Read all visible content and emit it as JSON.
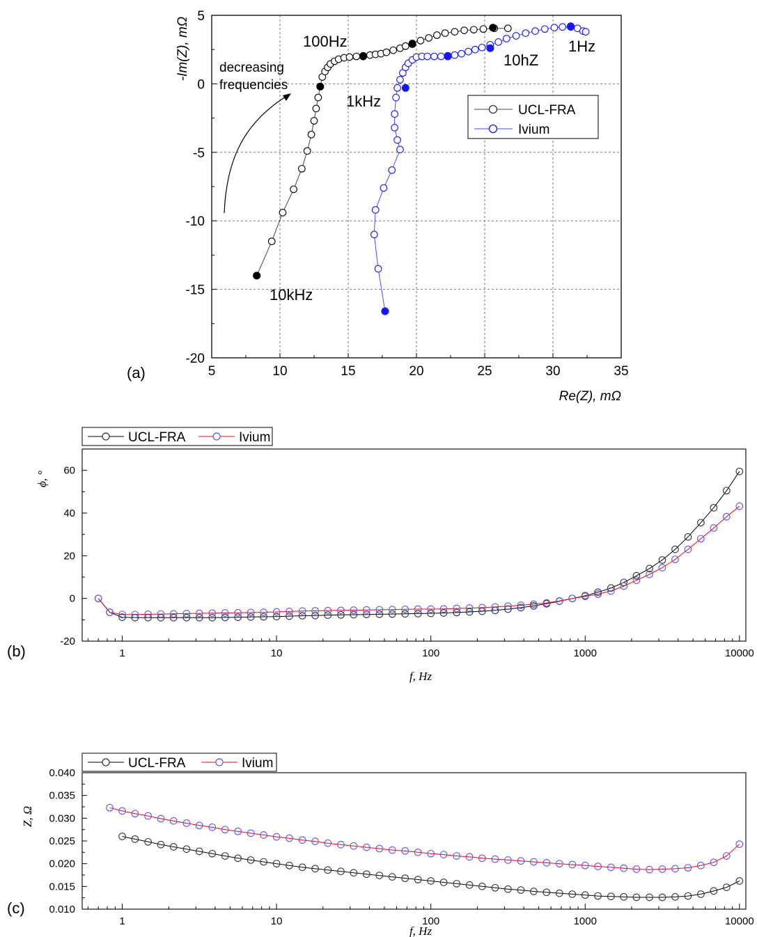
{
  "chart_data": [
    {
      "panel": "(a)",
      "type": "scatter",
      "xlabel": "Re(Z), mΩ",
      "ylabel": "-Im(Z), mΩ",
      "xlim": [
        5,
        35
      ],
      "ylim": [
        -20,
        5
      ],
      "xticks": [
        "5",
        "10",
        "15",
        "20",
        "25",
        "30",
        "35"
      ],
      "yticks": [
        "5",
        "0",
        "-5",
        "-10",
        "-15",
        "-20"
      ],
      "grid": true,
      "legend_position": "center-right",
      "annotations": [
        "100Hz",
        "decreasing",
        "frequencies",
        "1kHz",
        "10hZ",
        "1Hz",
        "10kHz"
      ],
      "series": [
        {
          "name": "UCL-FRA",
          "color": "#000000",
          "line_color": "#444444",
          "marker": "open-circle",
          "x": [
            8.3,
            9.4,
            10.2,
            11.0,
            11.6,
            12.0,
            12.3,
            12.5,
            12.65,
            12.8,
            12.95,
            13.1,
            13.3,
            13.5,
            13.7,
            14.0,
            14.3,
            14.7,
            15.1,
            15.6,
            16.1,
            16.6,
            17.0,
            17.4,
            17.8,
            18.3,
            18.8,
            19.2,
            19.7,
            20.3,
            20.9,
            21.5,
            22.1,
            22.8,
            23.5,
            24.2,
            24.9,
            25.7,
            26.7
          ],
          "y": [
            -14.0,
            -11.5,
            -9.4,
            -7.7,
            -6.2,
            -4.9,
            -3.7,
            -2.7,
            -1.8,
            -1.0,
            -0.2,
            0.5,
            0.9,
            1.2,
            1.45,
            1.65,
            1.8,
            1.9,
            1.95,
            2.0,
            2.05,
            2.1,
            2.15,
            2.2,
            2.3,
            2.45,
            2.6,
            2.75,
            2.95,
            3.15,
            3.35,
            3.55,
            3.7,
            3.8,
            3.9,
            3.95,
            4.0,
            4.05,
            4.05
          ],
          "highlighted_points": [
            [
              8.3,
              -14.0
            ],
            [
              12.95,
              -0.2
            ],
            [
              16.1,
              2.0
            ],
            [
              19.7,
              2.9
            ],
            [
              25.6,
              4.1
            ]
          ]
        },
        {
          "name": "Ivium",
          "color": "#1515ff",
          "line_color": "#4a4aff",
          "marker": "open-circle",
          "x": [
            17.7,
            17.2,
            16.9,
            17.0,
            17.6,
            18.2,
            18.8,
            18.6,
            18.4,
            18.4,
            18.5,
            18.6,
            18.8,
            19.0,
            19.2,
            19.4,
            19.7,
            20.0,
            20.4,
            20.8,
            21.3,
            21.8,
            22.3,
            22.8,
            23.3,
            23.8,
            24.3,
            24.8,
            25.4,
            26.0,
            26.6,
            27.3,
            28.0,
            28.7,
            29.4,
            30.1,
            30.7,
            31.3,
            31.8,
            32.2,
            32.4
          ],
          "y": [
            -16.6,
            -13.5,
            -11.0,
            -9.2,
            -7.6,
            -6.3,
            -4.8,
            -4.1,
            -3.2,
            -2.2,
            -1.0,
            -0.3,
            0.3,
            0.8,
            1.2,
            1.5,
            1.75,
            1.95,
            2.0,
            2.0,
            2.0,
            2.0,
            2.05,
            2.1,
            2.2,
            2.35,
            2.5,
            2.65,
            2.85,
            3.05,
            3.3,
            3.5,
            3.7,
            3.85,
            4.0,
            4.1,
            4.15,
            4.15,
            4.05,
            3.85,
            3.8
          ],
          "highlighted_points": [
            [
              17.7,
              -16.6
            ],
            [
              19.2,
              -0.3
            ],
            [
              22.3,
              2.0
            ],
            [
              25.4,
              2.6
            ],
            [
              31.3,
              4.2
            ]
          ]
        }
      ]
    },
    {
      "panel": "(b)",
      "type": "line",
      "xlabel": "f, Hz",
      "ylabel": "ϕ, °",
      "xscale": "log",
      "xlim": [
        0.55,
        11000
      ],
      "ylim": [
        -20,
        70
      ],
      "xticks": [
        "1",
        "10",
        "100",
        "1000",
        "10000"
      ],
      "yticks": [
        "60",
        "40",
        "20",
        "0",
        "-20"
      ],
      "grid": false,
      "legend_position": "top-left, outside",
      "legend": [
        "UCL-FRA",
        "Ivium"
      ],
      "series": [
        {
          "name": "UCL-FRA",
          "color": "#333333",
          "line_color": "#000000",
          "marker": "open-circle",
          "f": [
            0.7,
            0.83,
            1.0,
            1.21,
            1.47,
            1.78,
            2.15,
            2.61,
            3.16,
            3.83,
            4.64,
            5.62,
            6.81,
            8.25,
            10.0,
            12.1,
            14.7,
            17.8,
            21.5,
            26.1,
            31.6,
            38.3,
            46.4,
            56.2,
            68.1,
            82.5,
            100,
            121,
            147,
            178,
            215,
            261,
            316,
            383,
            464,
            562,
            681,
            825,
            1000,
            1210,
            1470,
            1780,
            2150,
            2610,
            3160,
            3830,
            4640,
            5620,
            6810,
            8250,
            10000
          ],
          "y": [
            0.0,
            -6.5,
            -8.8,
            -9.0,
            -9.0,
            -9.0,
            -9.0,
            -9.0,
            -9.0,
            -9.0,
            -8.9,
            -8.8,
            -8.7,
            -8.6,
            -8.5,
            -8.3,
            -8.1,
            -8.0,
            -7.8,
            -7.7,
            -7.6,
            -7.5,
            -7.4,
            -7.3,
            -7.2,
            -7.1,
            -7.0,
            -6.8,
            -6.6,
            -6.3,
            -6.0,
            -5.6,
            -5.0,
            -4.3,
            -3.5,
            -2.5,
            -1.3,
            0.0,
            1.3,
            2.9,
            4.9,
            7.5,
            10.6,
            14.0,
            18.0,
            23.0,
            28.8,
            35.5,
            42.5,
            50.5,
            59.5
          ]
        },
        {
          "name": "Ivium",
          "color": "#5555ff",
          "line_color": "#ff0000",
          "marker": "open-circle",
          "f": [
            0.7,
            0.83,
            1.0,
            1.21,
            1.47,
            1.78,
            2.15,
            2.61,
            3.16,
            3.83,
            4.64,
            5.62,
            6.81,
            8.25,
            10.0,
            12.1,
            14.7,
            17.8,
            21.5,
            26.1,
            31.6,
            38.3,
            46.4,
            56.2,
            68.1,
            82.5,
            100,
            121,
            147,
            178,
            215,
            261,
            316,
            383,
            464,
            562,
            681,
            825,
            1000,
            1210,
            1470,
            1780,
            2150,
            2610,
            3160,
            3830,
            4640,
            5620,
            6810,
            8250,
            10000
          ],
          "y": [
            0.0,
            -6.5,
            -7.5,
            -7.5,
            -7.4,
            -7.3,
            -7.2,
            -7.1,
            -7.0,
            -6.9,
            -6.8,
            -6.7,
            -6.6,
            -6.5,
            -6.3,
            -6.1,
            -5.9,
            -5.8,
            -5.7,
            -5.6,
            -5.5,
            -5.4,
            -5.3,
            -5.2,
            -5.1,
            -5.0,
            -5.0,
            -4.9,
            -4.7,
            -4.5,
            -4.3,
            -4.0,
            -3.6,
            -3.2,
            -2.7,
            -2.1,
            -1.2,
            0.0,
            1.0,
            2.0,
            3.5,
            5.8,
            8.5,
            11.3,
            14.4,
            18.3,
            23.0,
            28.0,
            33.0,
            38.3,
            43.2
          ]
        }
      ]
    },
    {
      "panel": "(c)",
      "type": "line",
      "xlabel": "f, Hz",
      "ylabel": "Z, Ω",
      "xscale": "log",
      "xlim": [
        0.55,
        11000
      ],
      "ylim": [
        0.01,
        0.04
      ],
      "xticks": [
        "1",
        "10",
        "100",
        "1000",
        "10000"
      ],
      "yticks": [
        "0.040",
        "0.035",
        "0.030",
        "0.025",
        "0.020",
        "0.015",
        "0.010"
      ],
      "grid": false,
      "legend_position": "top-left, outside",
      "legend": [
        "UCL-FRA",
        "Ivium"
      ],
      "series": [
        {
          "name": "UCL-FRA",
          "color": "#333333",
          "line_color": "#000000",
          "marker": "open-circle",
          "f": [
            1.0,
            1.21,
            1.47,
            1.78,
            2.15,
            2.61,
            3.16,
            3.83,
            4.64,
            5.62,
            6.81,
            8.25,
            10.0,
            12.1,
            14.7,
            17.8,
            21.5,
            26.1,
            31.6,
            38.3,
            46.4,
            56.2,
            68.1,
            82.5,
            100,
            121,
            147,
            178,
            215,
            261,
            316,
            383,
            464,
            562,
            681,
            825,
            1000,
            1210,
            1470,
            1780,
            2150,
            2610,
            3160,
            3830,
            4640,
            5620,
            6810,
            8250,
            10000
          ],
          "y": [
            0.026,
            0.0254,
            0.0248,
            0.0242,
            0.0237,
            0.0232,
            0.0227,
            0.0222,
            0.0217,
            0.0212,
            0.0208,
            0.0204,
            0.02,
            0.0196,
            0.0192,
            0.0189,
            0.0186,
            0.0183,
            0.018,
            0.0177,
            0.0174,
            0.0171,
            0.0168,
            0.0165,
            0.0162,
            0.0159,
            0.0156,
            0.0153,
            0.015,
            0.0147,
            0.0144,
            0.0142,
            0.0139,
            0.0137,
            0.0135,
            0.0133,
            0.0131,
            0.0129,
            0.0128,
            0.0127,
            0.0126,
            0.0126,
            0.0126,
            0.0127,
            0.0129,
            0.0133,
            0.014,
            0.0148,
            0.0162
          ]
        },
        {
          "name": "Ivium",
          "color": "#5555ff",
          "line_color": "#ff0000",
          "marker": "open-circle",
          "f": [
            0.83,
            1.0,
            1.21,
            1.47,
            1.78,
            2.15,
            2.61,
            3.16,
            3.83,
            4.64,
            5.62,
            6.81,
            8.25,
            10.0,
            12.1,
            14.7,
            17.8,
            21.5,
            26.1,
            31.6,
            38.3,
            46.4,
            56.2,
            68.1,
            82.5,
            100,
            121,
            147,
            178,
            215,
            261,
            316,
            383,
            464,
            562,
            681,
            825,
            1000,
            1210,
            1470,
            1780,
            2150,
            2610,
            3160,
            3830,
            4640,
            5620,
            6810,
            8250,
            10000
          ],
          "y": [
            0.0323,
            0.0316,
            0.031,
            0.0305,
            0.0299,
            0.0294,
            0.0289,
            0.0284,
            0.028,
            0.0275,
            0.0271,
            0.0267,
            0.0263,
            0.0259,
            0.0256,
            0.0252,
            0.0249,
            0.0245,
            0.0242,
            0.0239,
            0.0236,
            0.0233,
            0.023,
            0.0228,
            0.0225,
            0.0222,
            0.022,
            0.0217,
            0.0215,
            0.0212,
            0.021,
            0.0208,
            0.0206,
            0.0204,
            0.0202,
            0.02,
            0.0198,
            0.0196,
            0.0194,
            0.0192,
            0.019,
            0.0188,
            0.0187,
            0.0188,
            0.0189,
            0.0191,
            0.0196,
            0.0203,
            0.0217,
            0.0243
          ]
        }
      ]
    }
  ]
}
